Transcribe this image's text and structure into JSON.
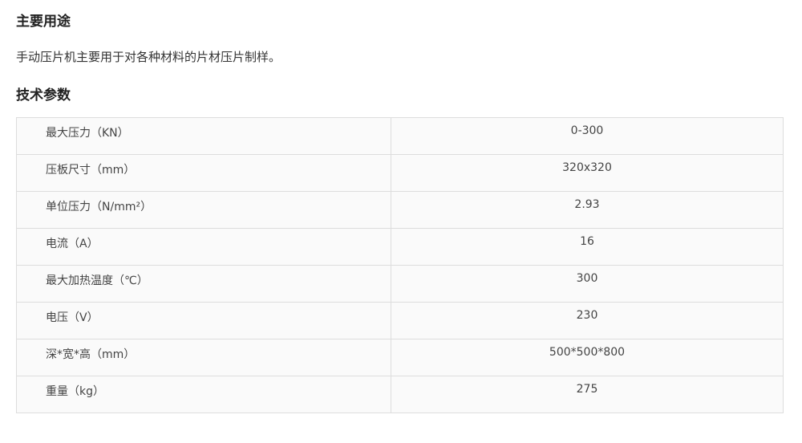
{
  "usage": {
    "title": "主要用途",
    "text": "手动压片机主要用于对各种材料的片材压片制样。"
  },
  "specs": {
    "title": "技术参数",
    "rows": [
      {
        "label": "最大压力（KN）",
        "value": "0-300"
      },
      {
        "label": "压板尺寸（mm）",
        "value": "320x320"
      },
      {
        "label": "单位压力（N/mm²）",
        "value": "2.93"
      },
      {
        "label": "电流（A）",
        "value": "16"
      },
      {
        "label": "最大加热温度（℃）",
        "value": "300"
      },
      {
        "label": "电压（V）",
        "value": "230"
      },
      {
        "label": "深*宽*高（mm）",
        "value": "500*500*800"
      },
      {
        "label": "重量（kg）",
        "value": "275"
      }
    ]
  }
}
